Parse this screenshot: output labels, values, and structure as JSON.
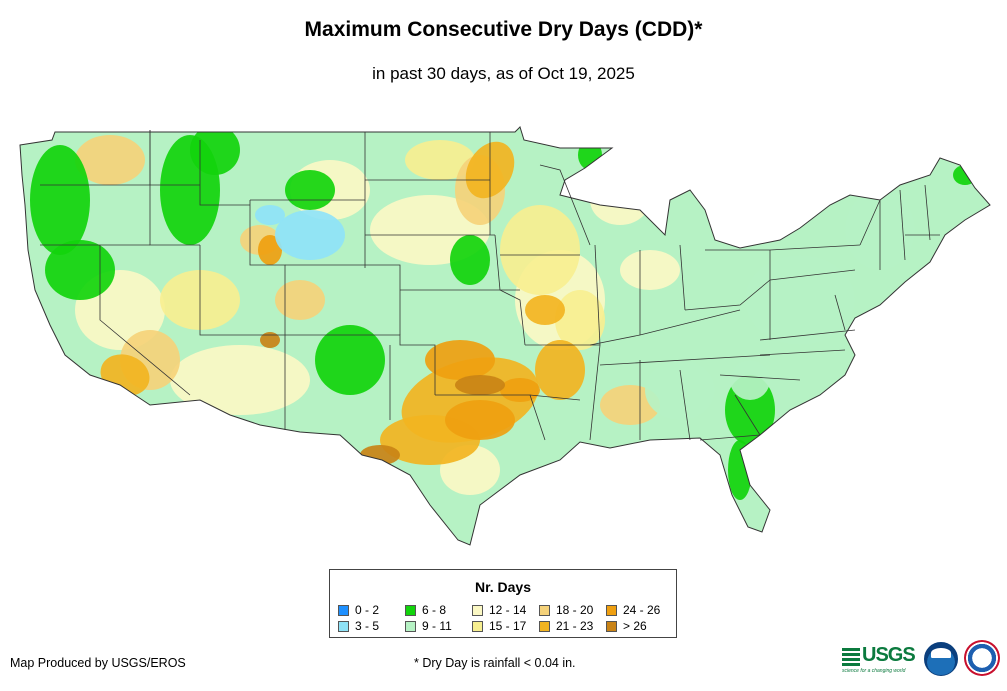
{
  "title": "Maximum Consecutive Dry Days (CDD)*",
  "subtitle": "in past 30 days, as of Oct 19, 2025",
  "legend": {
    "title": "Nr. Days",
    "items": [
      {
        "label": "0 - 2",
        "color": "#1e90ff"
      },
      {
        "label": "3 - 5",
        "color": "#8fe3f7"
      },
      {
        "label": "6 - 8",
        "color": "#12d40c"
      },
      {
        "label": "9 - 11",
        "color": "#b6f2c4"
      },
      {
        "label": "12 - 14",
        "color": "#fbf8c4"
      },
      {
        "label": "15 - 17",
        "color": "#f7ef90"
      },
      {
        "label": "18 - 20",
        "color": "#f5d27a"
      },
      {
        "label": "21 - 23",
        "color": "#f2b421"
      },
      {
        "label": "24 - 26",
        "color": "#ef9f10"
      },
      {
        "label": "> 26",
        "color": "#c98316"
      }
    ]
  },
  "footer": {
    "producer": "Map Produced by USGS/EROS",
    "note": "* Dry Day is rainfall < 0.04 in."
  },
  "logos": {
    "usgs": "USGS",
    "usgs_tagline": "science for a changing world",
    "noaa_icon": "noaa-logo-icon",
    "nws_icon": "nws-logo-icon"
  },
  "colors": {
    "state_border": "#333333",
    "water": "#ffffff"
  }
}
